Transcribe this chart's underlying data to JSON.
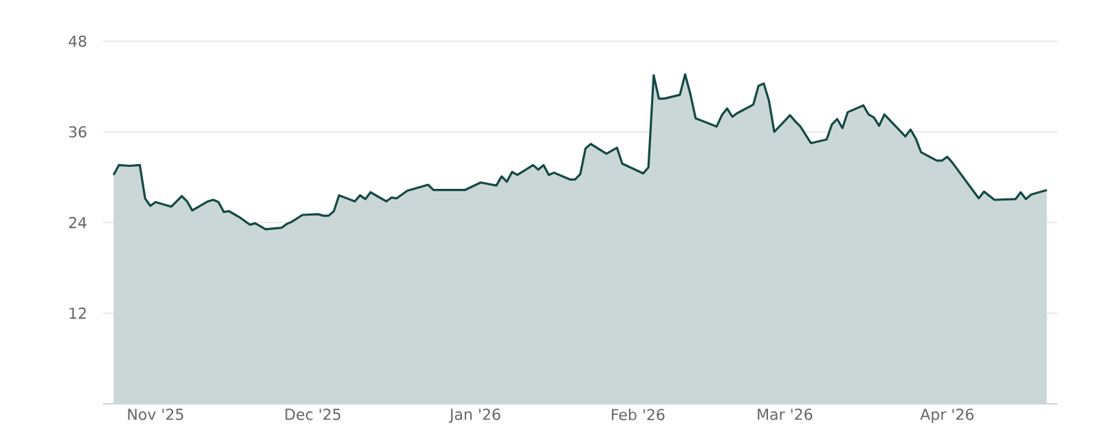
{
  "chart_data": {
    "type": "area",
    "color": "#134944",
    "grid": "y",
    "ylim": [
      0,
      48
    ],
    "yticks": [
      12,
      24,
      36,
      48
    ],
    "xlim": [
      "2025-10-22",
      "2026-04-22"
    ],
    "xticks": [
      {
        "value": "2025-11-01",
        "label": "Nov '25"
      },
      {
        "value": "2025-12-01",
        "label": "Dec '25"
      },
      {
        "value": "2026-01-01",
        "label": "Jan '26"
      },
      {
        "value": "2026-02-01",
        "label": "Feb '26"
      },
      {
        "value": "2026-03-01",
        "label": "Mar '26"
      },
      {
        "value": "2026-04-01",
        "label": "Apr '26"
      }
    ],
    "x": [
      "2025-10-24",
      "2025-10-25",
      "2025-10-27",
      "2025-10-29",
      "2025-10-30",
      "2025-10-31",
      "2025-11-01",
      "2025-11-03",
      "2025-11-04",
      "2025-11-06",
      "2025-11-07",
      "2025-11-08",
      "2025-11-11",
      "2025-11-12",
      "2025-11-13",
      "2025-11-14",
      "2025-11-15",
      "2025-11-17",
      "2025-11-18",
      "2025-11-19",
      "2025-11-20",
      "2025-11-22",
      "2025-11-25",
      "2025-11-26",
      "2025-11-27",
      "2025-11-29",
      "2025-12-02",
      "2025-12-03",
      "2025-12-04",
      "2025-12-05",
      "2025-12-06",
      "2025-12-09",
      "2025-12-10",
      "2025-12-11",
      "2025-12-12",
      "2025-12-15",
      "2025-12-16",
      "2025-12-17",
      "2025-12-19",
      "2025-12-23",
      "2025-12-24",
      "2025-12-30",
      "2026-01-02",
      "2026-01-05",
      "2026-01-06",
      "2026-01-07",
      "2026-01-08",
      "2026-01-09",
      "2026-01-12",
      "2026-01-13",
      "2026-01-14",
      "2026-01-15",
      "2026-01-16",
      "2026-01-19",
      "2026-01-20",
      "2026-01-21",
      "2026-01-22",
      "2026-01-23",
      "2026-01-26",
      "2026-01-28",
      "2026-01-29",
      "2026-02-02",
      "2026-02-03",
      "2026-02-04",
      "2026-02-05",
      "2026-02-06",
      "2026-02-09",
      "2026-02-10",
      "2026-02-11",
      "2026-02-12",
      "2026-02-16",
      "2026-02-17",
      "2026-02-18",
      "2026-02-19",
      "2026-02-20",
      "2026-02-23",
      "2026-02-24",
      "2026-02-25",
      "2026-02-26",
      "2026-02-27",
      "2026-03-02",
      "2026-03-03",
      "2026-03-04",
      "2026-03-06",
      "2026-03-09",
      "2026-03-10",
      "2026-03-11",
      "2026-03-12",
      "2026-03-13",
      "2026-03-16",
      "2026-03-17",
      "2026-03-18",
      "2026-03-19",
      "2026-03-20",
      "2026-03-24",
      "2026-03-25",
      "2026-03-26",
      "2026-03-27",
      "2026-03-30",
      "2026-03-31",
      "2026-04-01",
      "2026-04-02",
      "2026-04-07",
      "2026-04-08",
      "2026-04-10",
      "2026-04-14",
      "2026-04-15",
      "2026-04-16",
      "2026-04-17",
      "2026-04-20"
    ],
    "values": [
      30.3,
      31.6,
      31.5,
      31.6,
      27.2,
      26.2,
      26.7,
      26.3,
      26.1,
      27.5,
      26.8,
      25.6,
      26.8,
      27.0,
      26.7,
      25.4,
      25.5,
      24.7,
      24.2,
      23.7,
      23.9,
      23.1,
      23.3,
      23.8,
      24.1,
      25.0,
      25.1,
      24.9,
      24.9,
      25.5,
      27.6,
      26.8,
      27.6,
      27.1,
      28.0,
      26.8,
      27.3,
      27.2,
      28.2,
      29.0,
      28.3,
      28.3,
      29.3,
      28.9,
      30.1,
      29.4,
      30.7,
      30.3,
      31.6,
      31.0,
      31.6,
      30.3,
      30.6,
      29.7,
      29.7,
      30.4,
      33.8,
      34.4,
      33.1,
      33.9,
      31.8,
      30.5,
      31.3,
      43.5,
      40.4,
      40.4,
      40.9,
      43.6,
      41.0,
      37.8,
      36.7,
      38.2,
      39.1,
      38.0,
      38.5,
      39.6,
      42.1,
      42.4,
      40.1,
      36.0,
      38.2,
      37.4,
      36.7,
      34.5,
      35.0,
      37.0,
      37.7,
      36.5,
      38.6,
      39.5,
      38.3,
      37.9,
      36.8,
      38.3,
      35.4,
      36.3,
      35.1,
      33.3,
      32.2,
      32.2,
      32.7,
      31.9,
      27.2,
      28.1,
      27.0,
      27.1,
      28.0,
      27.1,
      27.7,
      28.3
    ]
  }
}
